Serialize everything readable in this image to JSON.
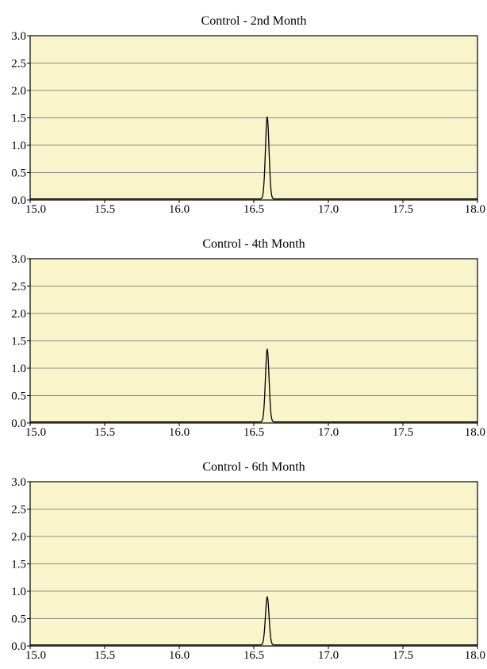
{
  "colors": {
    "plot_background": "#faf4cb",
    "gridline": "#8c8c8c",
    "trace": "#000000",
    "frame": "#000000"
  },
  "chart_data": [
    {
      "type": "line",
      "title": "Control - 2nd Month",
      "xlabel": "",
      "ylabel": "",
      "xlim": [
        15.0,
        18.0
      ],
      "ylim": [
        0.0,
        3.0
      ],
      "x_ticks": [
        "15.0",
        "15.5",
        "16.0",
        "16.5",
        "17.0",
        "17.5",
        "18.0"
      ],
      "y_ticks": [
        "0.0",
        "0.5",
        "1.0",
        "1.5",
        "2.0",
        "2.5",
        "3.0"
      ],
      "grid": true,
      "legend": "none",
      "baseline": 0.02,
      "peaks": [
        {
          "x": 16.59,
          "height": 1.52,
          "width": 0.012
        }
      ]
    },
    {
      "type": "line",
      "title": "Control - 4th Month",
      "xlabel": "",
      "ylabel": "",
      "xlim": [
        15.0,
        18.0
      ],
      "ylim": [
        0.0,
        3.0
      ],
      "x_ticks": [
        "15.0",
        "15.5",
        "16.0",
        "16.5",
        "17.0",
        "17.5",
        "18.0"
      ],
      "y_ticks": [
        "0.0",
        "0.5",
        "1.0",
        "1.5",
        "2.0",
        "2.5",
        "3.0"
      ],
      "grid": true,
      "legend": "none",
      "baseline": 0.02,
      "peaks": [
        {
          "x": 16.59,
          "height": 1.35,
          "width": 0.012
        }
      ]
    },
    {
      "type": "line",
      "title": "Control - 6th Month",
      "xlabel": "",
      "ylabel": "",
      "xlim": [
        15.0,
        18.0
      ],
      "ylim": [
        0.0,
        3.0
      ],
      "x_ticks": [
        "15.0",
        "15.5",
        "16.0",
        "16.5",
        "17.0",
        "17.5",
        "18.0"
      ],
      "y_ticks": [
        "0.0",
        "0.5",
        "1.0",
        "1.5",
        "2.0",
        "2.5",
        "3.0"
      ],
      "grid": true,
      "legend": "none",
      "baseline": 0.02,
      "peaks": [
        {
          "x": 16.59,
          "height": 0.9,
          "width": 0.012
        }
      ]
    }
  ]
}
